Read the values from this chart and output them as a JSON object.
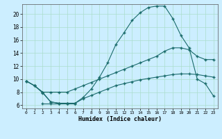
{
  "title": "",
  "xlabel": "Humidex (Indice chaleur)",
  "bg_color": "#cceeff",
  "grid_color": "#aaddcc",
  "line_color": "#1a6b6b",
  "xlim": [
    -0.5,
    23.5
  ],
  "ylim": [
    5.5,
    21.5
  ],
  "xticks": [
    0,
    1,
    2,
    3,
    4,
    5,
    6,
    7,
    8,
    9,
    10,
    11,
    12,
    13,
    14,
    15,
    16,
    17,
    18,
    19,
    20,
    21,
    22,
    23
  ],
  "yticks": [
    6,
    8,
    10,
    12,
    14,
    16,
    18,
    20
  ],
  "curve1_x": [
    0,
    1,
    2,
    3,
    4,
    5,
    6,
    7,
    8,
    9,
    10,
    11,
    12,
    13,
    14,
    15,
    16,
    17,
    18,
    19,
    20,
    21,
    22,
    23
  ],
  "curve1_y": [
    9.7,
    9.0,
    8.0,
    6.5,
    6.3,
    6.3,
    6.3,
    7.0,
    7.5,
    8.0,
    8.5,
    9.0,
    9.3,
    9.6,
    9.9,
    10.1,
    10.3,
    10.5,
    10.7,
    10.8,
    10.8,
    10.7,
    10.5,
    10.3
  ],
  "curve2_x": [
    0,
    1,
    2,
    3,
    4,
    5,
    6,
    7,
    8,
    9,
    10,
    11,
    12,
    13,
    14,
    15,
    16,
    17,
    18,
    19,
    20,
    21,
    22,
    23
  ],
  "curve2_y": [
    9.7,
    9.0,
    8.0,
    8.0,
    8.0,
    8.0,
    8.5,
    9.0,
    9.5,
    10.0,
    10.5,
    11.0,
    11.5,
    12.0,
    12.5,
    13.0,
    13.5,
    14.3,
    14.8,
    14.8,
    14.5,
    13.5,
    13.0,
    13.0
  ],
  "curve3_x": [
    2,
    3,
    4,
    5,
    6
  ],
  "curve3_y": [
    6.3,
    6.3,
    6.3,
    6.3,
    6.3
  ],
  "curve4_x": [
    0,
    1,
    2,
    3,
    4,
    5,
    6,
    7,
    8,
    9,
    10,
    11,
    12,
    13,
    14,
    15,
    16,
    17,
    18,
    19,
    20,
    21,
    22,
    23
  ],
  "curve4_y": [
    9.7,
    9.0,
    7.9,
    6.5,
    6.3,
    6.3,
    6.3,
    7.2,
    8.5,
    10.3,
    12.5,
    15.3,
    17.1,
    19.0,
    20.2,
    21.0,
    21.2,
    21.2,
    19.3,
    16.7,
    14.8,
    10.0,
    9.3,
    7.4
  ]
}
